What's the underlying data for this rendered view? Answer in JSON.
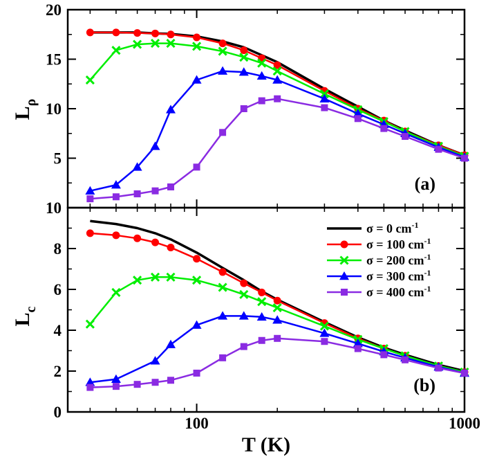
{
  "chart_data": {
    "type": "line",
    "x_scale": "log",
    "xlabel": "T (K)",
    "xlim": [
      33,
      1000
    ],
    "x_ticks": [
      100,
      1000
    ],
    "x_tick_labels": [
      "100",
      "1000"
    ],
    "legend": {
      "placement": "top-right of panel (b)",
      "entries": [
        {
          "series": "sigma0",
          "label": "σ = 0 cm-1",
          "text": "σ = 0 cm",
          "sup": "-1"
        },
        {
          "series": "sigma100",
          "label": "σ = 100 cm-1",
          "text": "σ = 100 cm",
          "sup": "-1"
        },
        {
          "series": "sigma200",
          "label": "σ = 200 cm-1",
          "text": "σ = 200 cm",
          "sup": "-1"
        },
        {
          "series": "sigma300",
          "label": "σ = 300 cm-1",
          "text": "σ = 300 cm",
          "sup": "-1"
        },
        {
          "series": "sigma400",
          "label": "σ = 400 cm-1",
          "text": "σ = 400 cm",
          "sup": "-1"
        }
      ]
    },
    "styles": {
      "sigma0": {
        "color": "#000000",
        "marker": "none"
      },
      "sigma100": {
        "color": "#ff0000",
        "marker": "circle"
      },
      "sigma200": {
        "color": "#00ee00",
        "marker": "x"
      },
      "sigma300": {
        "color": "#0000ff",
        "marker": "triangle"
      },
      "sigma400": {
        "color": "#8a2be2",
        "marker": "square"
      }
    },
    "panels": [
      {
        "id": "a",
        "panel_label": "(a)",
        "ylabel": "L",
        "ylabel_sub": "ρ",
        "ylim": [
          0,
          20
        ],
        "y_ticks": [
          5,
          10,
          15,
          20
        ],
        "y_tick_labels": [
          "5",
          "10",
          "15",
          "20"
        ],
        "series": [
          {
            "key": "sigma0",
            "x": [
              40,
              50,
              60,
              70,
              80,
              100,
              125,
              150,
              175,
              200,
              300,
              400,
              500,
              600,
              800,
              1000
            ],
            "y": [
              17.7,
              17.7,
              17.7,
              17.6,
              17.55,
              17.3,
              16.8,
              16.2,
              15.4,
              14.7,
              12.0,
              10.2,
              8.8,
              7.8,
              6.3,
              5.3
            ]
          },
          {
            "key": "sigma100",
            "x": [
              40,
              50,
              60,
              70,
              80,
              100,
              125,
              150,
              175,
              200,
              300,
              400,
              500,
              600,
              800,
              1000
            ],
            "y": [
              17.7,
              17.7,
              17.65,
              17.6,
              17.5,
              17.2,
              16.6,
              15.9,
              15.1,
              14.4,
              11.8,
              10.0,
              8.8,
              7.7,
              6.3,
              5.3
            ]
          },
          {
            "key": "sigma200",
            "x": [
              40,
              50,
              60,
              70,
              80,
              100,
              125,
              150,
              175,
              200,
              300,
              400,
              500,
              600,
              800,
              1000
            ],
            "y": [
              12.9,
              15.9,
              16.5,
              16.6,
              16.6,
              16.3,
              15.8,
              15.2,
              14.6,
              13.8,
              11.5,
              9.9,
              8.7,
              7.7,
              6.2,
              5.2
            ]
          },
          {
            "key": "sigma300",
            "x": [
              40,
              50,
              60,
              70,
              80,
              100,
              125,
              150,
              175,
              200,
              300,
              400,
              500,
              600,
              800,
              1000
            ],
            "y": [
              1.7,
              2.3,
              4.1,
              6.2,
              9.9,
              12.9,
              13.8,
              13.7,
              13.3,
              12.9,
              11.0,
              9.5,
              8.4,
              7.5,
              6.1,
              5.1
            ]
          },
          {
            "key": "sigma400",
            "x": [
              40,
              50,
              60,
              70,
              80,
              100,
              125,
              150,
              175,
              200,
              300,
              400,
              500,
              600,
              800,
              1000
            ],
            "y": [
              0.9,
              1.1,
              1.4,
              1.7,
              2.1,
              4.1,
              7.6,
              10.0,
              10.8,
              11.0,
              10.1,
              9.0,
              8.0,
              7.2,
              5.9,
              5.0
            ]
          }
        ]
      },
      {
        "id": "b",
        "panel_label": "(b)",
        "ylabel": "L",
        "ylabel_sub": "c",
        "ylim": [
          0,
          10
        ],
        "y_ticks": [
          0,
          2,
          4,
          6,
          8,
          10
        ],
        "y_tick_labels": [
          "0",
          "2",
          "4",
          "6",
          "8",
          "10"
        ],
        "series": [
          {
            "key": "sigma0",
            "x": [
              40,
              50,
              60,
              70,
              80,
              100,
              125,
              150,
              175,
              200,
              300,
              400,
              500,
              600,
              800,
              1000
            ],
            "y": [
              9.35,
              9.2,
              9.0,
              8.75,
              8.45,
              7.8,
              7.05,
              6.45,
              5.9,
              5.5,
              4.4,
              3.65,
              3.15,
              2.8,
              2.3,
              2.0
            ]
          },
          {
            "key": "sigma100",
            "x": [
              40,
              50,
              60,
              70,
              80,
              100,
              125,
              150,
              175,
              200,
              300,
              400,
              500,
              600,
              800,
              1000
            ],
            "y": [
              8.75,
              8.65,
              8.5,
              8.3,
              8.05,
              7.5,
              6.85,
              6.3,
              5.85,
              5.45,
              4.35,
              3.6,
              3.1,
              2.75,
              2.25,
              1.95
            ]
          },
          {
            "key": "sigma200",
            "x": [
              40,
              50,
              60,
              70,
              80,
              100,
              125,
              150,
              175,
              200,
              300,
              400,
              500,
              600,
              800,
              1000
            ],
            "y": [
              4.3,
              5.85,
              6.45,
              6.6,
              6.6,
              6.45,
              6.1,
              5.75,
              5.4,
              5.1,
              4.2,
              3.55,
              3.1,
              2.75,
              2.25,
              1.95
            ]
          },
          {
            "key": "sigma300",
            "x": [
              40,
              50,
              60,
              70,
              80,
              100,
              125,
              150,
              175,
              200,
              300,
              400,
              500,
              600,
              800,
              1000
            ],
            "y": [
              1.45,
              1.6,
              null,
              2.5,
              3.3,
              4.25,
              4.7,
              4.7,
              4.65,
              4.5,
              3.85,
              3.35,
              2.95,
              2.65,
              2.2,
              1.9
            ]
          },
          {
            "key": "sigma400",
            "x": [
              40,
              50,
              60,
              70,
              80,
              100,
              125,
              150,
              175,
              200,
              300,
              400,
              500,
              600,
              800,
              1000
            ],
            "y": [
              1.2,
              1.25,
              1.35,
              1.45,
              1.55,
              1.9,
              2.65,
              3.2,
              3.5,
              3.6,
              3.45,
              3.1,
              2.8,
              2.55,
              2.15,
              1.9
            ]
          }
        ]
      }
    ]
  }
}
